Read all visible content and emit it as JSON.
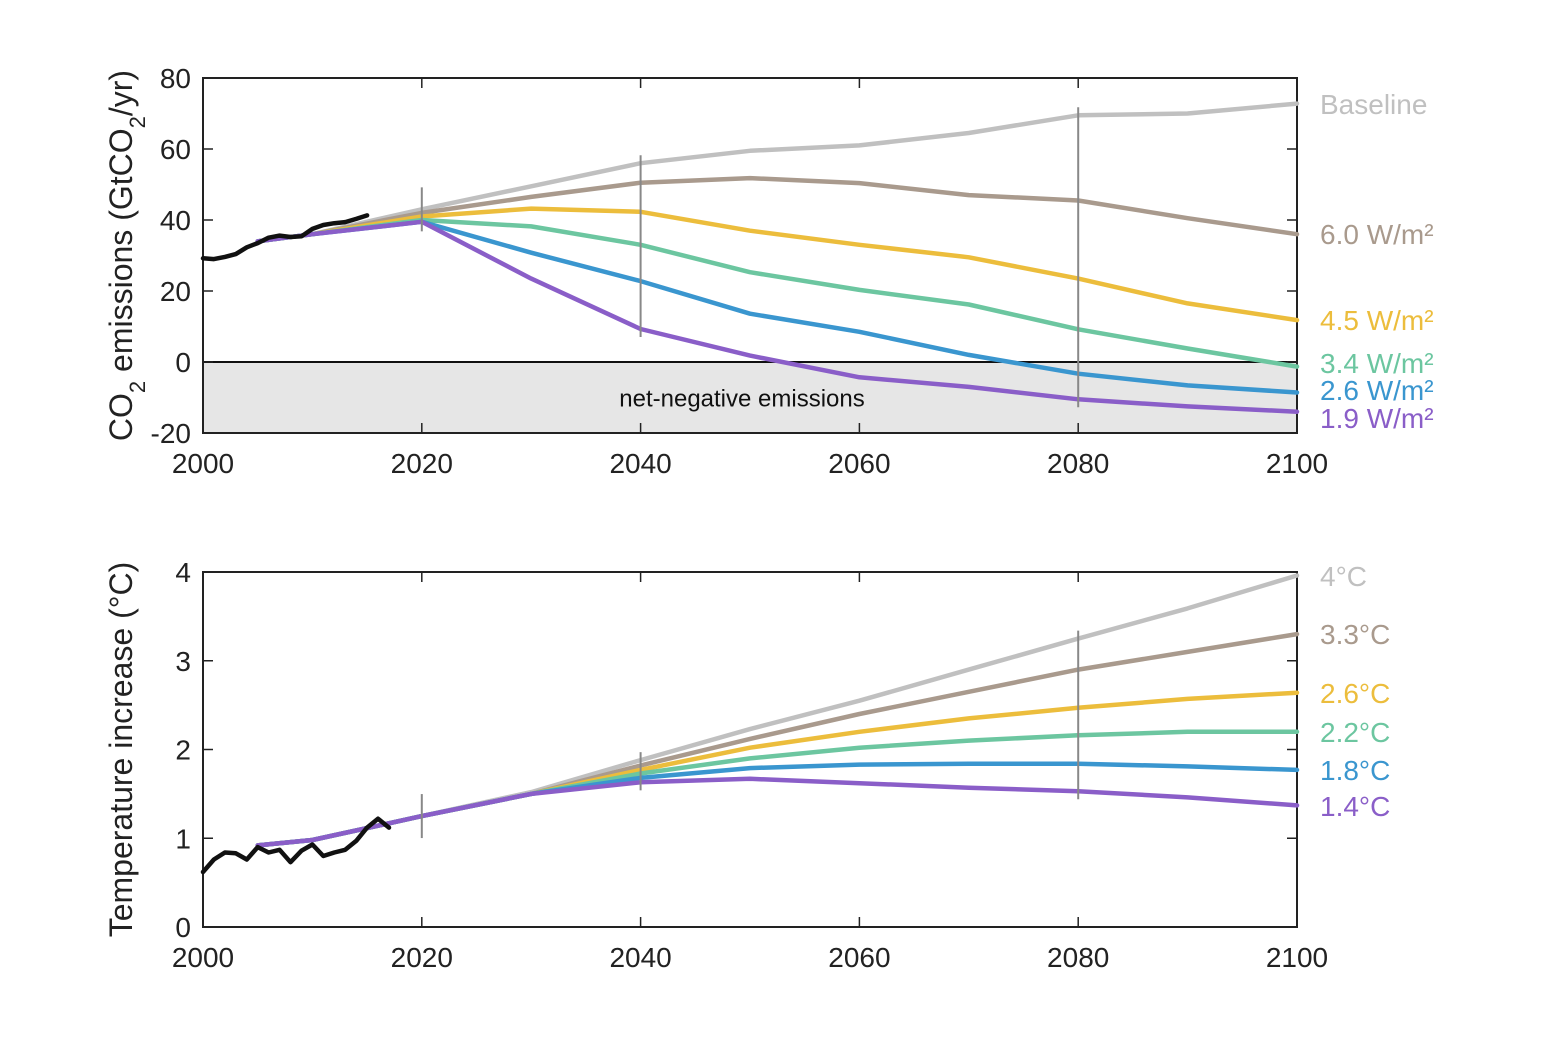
{
  "chart_data": [
    {
      "type": "line",
      "ylabel_parts": [
        "CO",
        "2",
        " emissions (GtCO",
        "2",
        "/yr)"
      ],
      "xlim": [
        2000,
        2100
      ],
      "ylim": [
        -20,
        80
      ],
      "xticks": [
        2000,
        2020,
        2040,
        2060,
        2080,
        2100
      ],
      "yticks": [
        -20,
        0,
        20,
        40,
        60,
        80
      ],
      "grid": false,
      "legend": "labels at right end of lines",
      "shaded_region": {
        "from": -20,
        "to": 0,
        "color": "#e6e6e6",
        "label": "net-negative emissions"
      },
      "zero_line": 0,
      "marker_years": [
        2020,
        2040,
        2080
      ],
      "historical": {
        "color": "#111111",
        "x": [
          2000,
          2001,
          2002,
          2003,
          2004,
          2005,
          2006,
          2007,
          2008,
          2009,
          2010,
          2011,
          2012,
          2013,
          2014,
          2015
        ],
        "y": [
          29.2,
          29.0,
          29.6,
          30.4,
          32.3,
          33.5,
          35.0,
          35.6,
          35.2,
          35.4,
          37.5,
          38.6,
          39.1,
          39.4,
          40.3,
          41.3
        ]
      },
      "series": [
        {
          "name": "Baseline",
          "color": "#c0c0c0",
          "x": [
            2005,
            2010,
            2020,
            2030,
            2040,
            2050,
            2060,
            2070,
            2080,
            2090,
            2100
          ],
          "y": [
            34,
            36,
            43,
            49.5,
            56,
            59.5,
            61,
            64.5,
            69.5,
            70,
            72.8
          ]
        },
        {
          "name": "6.0 W/m²",
          "color": "#a99a8d",
          "x": [
            2005,
            2010,
            2020,
            2030,
            2040,
            2050,
            2060,
            2070,
            2080,
            2090,
            2100
          ],
          "y": [
            34,
            36,
            42,
            46.5,
            50.5,
            51.8,
            50.4,
            47,
            45.5,
            40.5,
            36
          ]
        },
        {
          "name": "4.5 W/m²",
          "color": "#ecbd3c",
          "x": [
            2005,
            2010,
            2020,
            2030,
            2040,
            2050,
            2060,
            2070,
            2080,
            2090,
            2100
          ],
          "y": [
            34,
            36,
            41,
            43.2,
            42.3,
            37,
            33,
            29.5,
            23.5,
            16.5,
            11.8
          ]
        },
        {
          "name": "3.4 W/m²",
          "color": "#6cc6a0",
          "x": [
            2005,
            2010,
            2020,
            2030,
            2040,
            2050,
            2060,
            2070,
            2080,
            2090,
            2100
          ],
          "y": [
            34,
            36,
            40,
            38.2,
            33,
            25.3,
            20.3,
            16.2,
            9.2,
            3.8,
            -1.3
          ]
        },
        {
          "name": "2.6 W/m²",
          "color": "#3a96cf",
          "x": [
            2005,
            2010,
            2020,
            2030,
            2040,
            2050,
            2060,
            2070,
            2080,
            2090,
            2100
          ],
          "y": [
            34,
            36,
            39.5,
            30.8,
            22.8,
            13.6,
            8.5,
            2,
            -3.3,
            -6.6,
            -8.6
          ]
        },
        {
          "name": "1.9 W/m²",
          "color": "#8a5ec8",
          "x": [
            2005,
            2010,
            2020,
            2030,
            2040,
            2050,
            2060,
            2070,
            2080,
            2090,
            2100
          ],
          "y": [
            34,
            36,
            39.5,
            23.5,
            9.3,
            1.8,
            -4.3,
            -7,
            -10.5,
            -12.5,
            -14
          ]
        }
      ]
    },
    {
      "type": "line",
      "ylabel": "Temperature increase (°C)",
      "xlim": [
        2000,
        2100
      ],
      "ylim": [
        0,
        4
      ],
      "xticks": [
        2000,
        2020,
        2040,
        2060,
        2080,
        2100
      ],
      "yticks": [
        0,
        1,
        2,
        3,
        4
      ],
      "grid": false,
      "legend": "labels at right end of lines",
      "marker_years": [
        2020,
        2040,
        2080
      ],
      "historical": {
        "color": "#111111",
        "x": [
          2000,
          2001,
          2002,
          2003,
          2004,
          2005,
          2006,
          2007,
          2008,
          2009,
          2010,
          2011,
          2012,
          2013,
          2014,
          2015,
          2016,
          2017
        ],
        "y": [
          0.62,
          0.76,
          0.84,
          0.83,
          0.76,
          0.9,
          0.84,
          0.87,
          0.73,
          0.86,
          0.93,
          0.8,
          0.84,
          0.87,
          0.97,
          1.12,
          1.22,
          1.12
        ]
      },
      "series": [
        {
          "name": "4°C",
          "color": "#c0c0c0",
          "x": [
            2005,
            2010,
            2020,
            2030,
            2040,
            2050,
            2060,
            2070,
            2080,
            2090,
            2100
          ],
          "y": [
            0.92,
            0.98,
            1.25,
            1.52,
            1.88,
            2.23,
            2.55,
            2.9,
            3.25,
            3.59,
            3.96
          ]
        },
        {
          "name": "3.3°C",
          "color": "#a99a8d",
          "x": [
            2005,
            2010,
            2020,
            2030,
            2040,
            2050,
            2060,
            2070,
            2080,
            2090,
            2100
          ],
          "y": [
            0.92,
            0.98,
            1.25,
            1.5,
            1.82,
            2.12,
            2.4,
            2.65,
            2.9,
            3.1,
            3.3
          ]
        },
        {
          "name": "2.6°C",
          "color": "#ecbd3c",
          "x": [
            2005,
            2010,
            2020,
            2030,
            2040,
            2050,
            2060,
            2070,
            2080,
            2090,
            2100
          ],
          "y": [
            0.92,
            0.98,
            1.25,
            1.5,
            1.77,
            2.02,
            2.2,
            2.35,
            2.47,
            2.57,
            2.64
          ]
        },
        {
          "name": "2.2°C",
          "color": "#6cc6a0",
          "x": [
            2005,
            2010,
            2020,
            2030,
            2040,
            2050,
            2060,
            2070,
            2080,
            2090,
            2100
          ],
          "y": [
            0.92,
            0.98,
            1.25,
            1.5,
            1.73,
            1.9,
            2.02,
            2.1,
            2.16,
            2.2,
            2.2
          ]
        },
        {
          "name": "1.8°C",
          "color": "#3a96cf",
          "x": [
            2005,
            2010,
            2020,
            2030,
            2040,
            2050,
            2060,
            2070,
            2080,
            2090,
            2100
          ],
          "y": [
            0.92,
            0.98,
            1.25,
            1.5,
            1.68,
            1.79,
            1.83,
            1.84,
            1.84,
            1.81,
            1.77
          ]
        },
        {
          "name": "1.4°C",
          "color": "#8a5ec8",
          "x": [
            2005,
            2010,
            2020,
            2030,
            2040,
            2050,
            2060,
            2070,
            2080,
            2090,
            2100
          ],
          "y": [
            0.92,
            0.98,
            1.25,
            1.5,
            1.63,
            1.67,
            1.62,
            1.57,
            1.53,
            1.46,
            1.37
          ]
        }
      ]
    }
  ]
}
